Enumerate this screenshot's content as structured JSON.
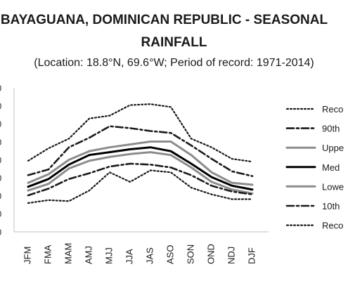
{
  "chart_data": {
    "type": "line",
    "title": "BAYAGUANA, DOMINICAN REPUBLIC - SEASONAL RAINFALL",
    "title_line1": "BAYAGUANA, DOMINICAN REPUBLIC - SEASONAL",
    "title_line2": "RAINFALL",
    "subtitle": "(Location: 18.8°N, 69.6°W; Period of record: 1971-2014)",
    "categories": [
      "JFM",
      "FMA",
      "MAM",
      "AMJ",
      "MJJ",
      "JJA",
      "JAS",
      "ASO",
      "SON",
      "OND",
      "NDJ",
      "DJF"
    ],
    "grid": false,
    "legend_position": "right",
    "series": [
      {
        "name": "Record",
        "label": "Reco",
        "style": "dotted",
        "color": "#1a1a1a",
        "values": [
          0.74,
          0.87,
          0.97,
          1.18,
          1.21,
          1.32,
          1.33,
          1.3,
          0.97,
          0.88,
          0.76,
          0.73
        ]
      },
      {
        "name": "90th",
        "label": "90th",
        "style": "dashdot",
        "color": "#1a1a1a",
        "values": [
          0.59,
          0.65,
          0.88,
          0.98,
          1.1,
          1.08,
          1.05,
          1.03,
          0.9,
          0.76,
          0.63,
          0.58
        ]
      },
      {
        "name": "Upper",
        "label": "Uppe",
        "style": "solid",
        "color": "#8c8c8c",
        "values": [
          0.51,
          0.6,
          0.75,
          0.84,
          0.88,
          0.91,
          0.94,
          0.94,
          0.8,
          0.62,
          0.51,
          0.49
        ]
      },
      {
        "name": "Median",
        "label": "Med",
        "style": "solid",
        "color": "#000000",
        "values": [
          0.47,
          0.55,
          0.7,
          0.8,
          0.83,
          0.86,
          0.88,
          0.84,
          0.71,
          0.57,
          0.48,
          0.44
        ]
      },
      {
        "name": "Lower",
        "label": "Lowe",
        "style": "solid",
        "color": "#8c8c8c",
        "values": [
          0.43,
          0.5,
          0.66,
          0.74,
          0.78,
          0.81,
          0.83,
          0.8,
          0.67,
          0.52,
          0.44,
          0.4
        ]
      },
      {
        "name": "10th",
        "label": "10th",
        "style": "dashdot",
        "color": "#1a1a1a",
        "values": [
          0.38,
          0.45,
          0.55,
          0.61,
          0.68,
          0.71,
          0.7,
          0.67,
          0.59,
          0.48,
          0.42,
          0.39
        ]
      },
      {
        "name": "Record",
        "label": "Reco",
        "style": "dotted",
        "color": "#1a1a1a",
        "values": [
          0.3,
          0.33,
          0.32,
          0.43,
          0.62,
          0.52,
          0.64,
          0.62,
          0.46,
          0.39,
          0.34,
          0.34
        ]
      }
    ]
  }
}
